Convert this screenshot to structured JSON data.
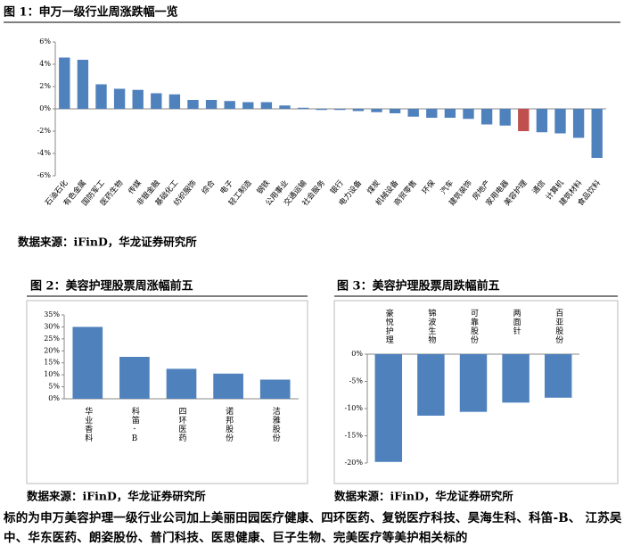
{
  "chart_data": [
    {
      "type": "bar",
      "title": "图 1：申万一级行业周涨跌幅一览",
      "source": "数据来源：iFinD，华龙证券研究所",
      "categories": [
        "石油石化",
        "有色金属",
        "国防军工",
        "医药生物",
        "传媒",
        "非银金融",
        "基础化工",
        "纺织服饰",
        "综合",
        "电子",
        "轻工制造",
        "钢铁",
        "公用事业",
        "交通运输",
        "社会服务",
        "银行",
        "电力设备",
        "煤炭",
        "机械设备",
        "商贸零售",
        "环保",
        "汽车",
        "建筑装饰",
        "房地产",
        "家用电器",
        "美容护理",
        "通信",
        "计算机",
        "建筑材料",
        "食品饮料"
      ],
      "values": [
        4.6,
        4.4,
        2.2,
        1.8,
        1.7,
        1.4,
        1.3,
        0.8,
        0.8,
        0.7,
        0.6,
        0.6,
        0.3,
        0.1,
        -0.1,
        -0.1,
        -0.2,
        -0.3,
        -0.4,
        -0.7,
        -0.8,
        -0.8,
        -0.9,
        -1.4,
        -1.5,
        -2.0,
        -2.1,
        -2.2,
        -2.6,
        -4.4
      ],
      "colors": [
        "#4f81bd",
        "#4f81bd",
        "#4f81bd",
        "#4f81bd",
        "#4f81bd",
        "#4f81bd",
        "#4f81bd",
        "#4f81bd",
        "#4f81bd",
        "#4f81bd",
        "#4f81bd",
        "#4f81bd",
        "#4f81bd",
        "#4f81bd",
        "#4f81bd",
        "#4f81bd",
        "#4f81bd",
        "#4f81bd",
        "#4f81bd",
        "#4f81bd",
        "#4f81bd",
        "#4f81bd",
        "#4f81bd",
        "#4f81bd",
        "#4f81bd",
        "#c0504d",
        "#4f81bd",
        "#4f81bd",
        "#4f81bd",
        "#4f81bd"
      ],
      "ylim": [
        -6,
        6
      ],
      "yticks": [
        {
          "value": 6,
          "label": "6%"
        },
        {
          "value": 4,
          "label": "4%"
        },
        {
          "value": 2,
          "label": "2%"
        },
        {
          "value": 0,
          "label": "0%"
        },
        {
          "value": -2,
          "label": "-2%"
        },
        {
          "value": -4,
          "label": "-4%"
        },
        {
          "value": -6,
          "label": "-6%"
        }
      ]
    },
    {
      "type": "bar",
      "title": "图 2：美容护理股票周涨幅前五",
      "source": "数据来源：iFinD，华龙证券研究所",
      "categories": [
        "华业香料",
        "科笛-B",
        "四环医药",
        "诺邦股份",
        "洁雅股份"
      ],
      "values": [
        30,
        17.5,
        12.5,
        10.5,
        8
      ],
      "color": "#4f81bd",
      "ylim": [
        0,
        35
      ],
      "yticks": [
        {
          "value": 0,
          "label": "0%"
        },
        {
          "value": 5,
          "label": "5%"
        },
        {
          "value": 10,
          "label": "10%"
        },
        {
          "value": 15,
          "label": "15%"
        },
        {
          "value": 20,
          "label": "20%"
        },
        {
          "value": 25,
          "label": "25%"
        },
        {
          "value": 30,
          "label": "30%"
        },
        {
          "value": 35,
          "label": "35%"
        }
      ]
    },
    {
      "type": "bar",
      "title": "图 3：美容护理股票周跌幅前五",
      "source": "数据来源：iFinD，华龙证券研究所",
      "categories": [
        "豪悦护理",
        "锦波生物",
        "可靠股份",
        "两面针",
        "百亚股份"
      ],
      "values": [
        -19.8,
        -11.3,
        -10.6,
        -8.9,
        -8
      ],
      "color": "#4f81bd",
      "ylim": [
        -20,
        0
      ],
      "yticks": [
        {
          "value": 0,
          "label": "0%"
        },
        {
          "value": -5,
          "label": "-5%"
        },
        {
          "value": -10,
          "label": "-10%"
        },
        {
          "value": -15,
          "label": "-15%"
        },
        {
          "value": -20,
          "label": "-20%"
        }
      ]
    }
  ],
  "body_text": "标的为申万美容护理一级行业公司加上美丽田园医疗健康、四环医药、复锐医疗科技、昊海生科、科笛-B、 江苏吴中、华东医药、朗姿股份、普门科技、医思健康、巨子生物、完美医疗等美护相关标的"
}
